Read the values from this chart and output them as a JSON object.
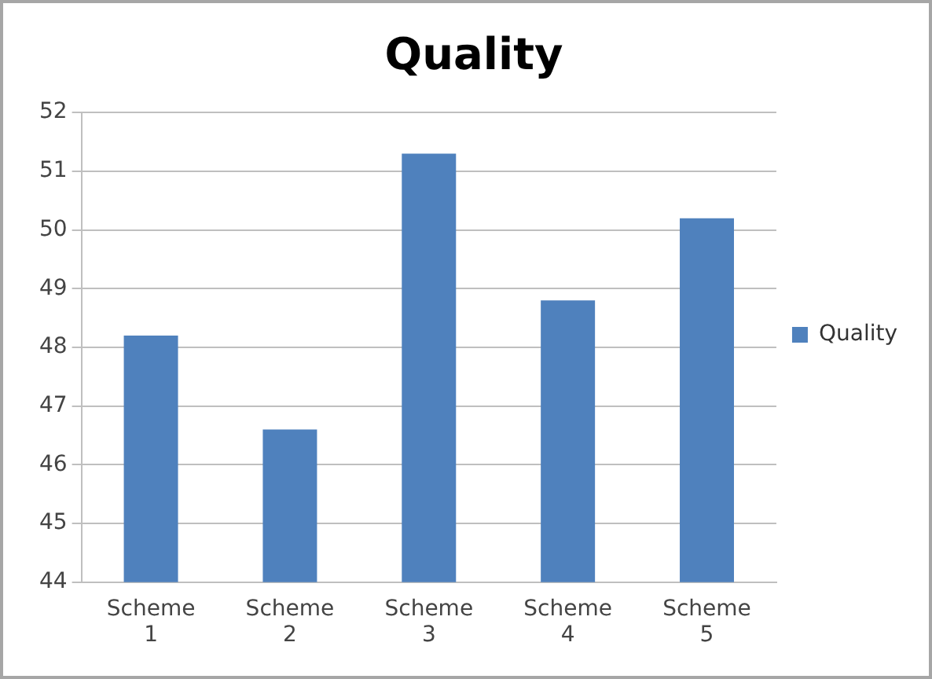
{
  "chart_data": {
    "type": "bar",
    "title": "Quality",
    "categories": [
      "Scheme 1",
      "Scheme 2",
      "Scheme 3",
      "Scheme 4",
      "Scheme 5"
    ],
    "series": [
      {
        "name": "Quality",
        "color": "#4f81bd",
        "values": [
          48.2,
          46.6,
          51.3,
          48.8,
          50.2
        ]
      }
    ],
    "ylim": [
      44,
      52
    ],
    "yticks": [
      44,
      45,
      46,
      47,
      48,
      49,
      50,
      51,
      52
    ],
    "grid": "y",
    "legend": "right"
  }
}
